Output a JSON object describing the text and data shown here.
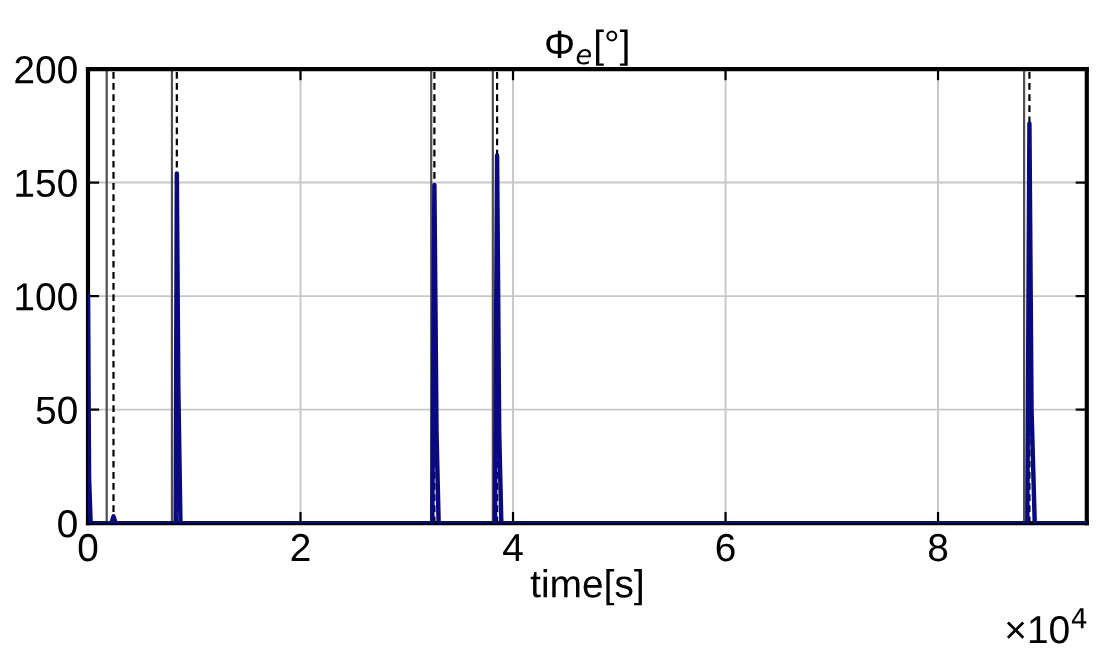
{
  "chart_data": {
    "type": "line",
    "title": "Φ$_{e}$[°]",
    "xlabel": "time[s]",
    "annotations": [
      "×10$^{4}$"
    ],
    "xlim": [
      0,
      9.4
    ],
    "xticks": [
      0,
      2,
      4,
      6,
      8
    ],
    "ylim": [
      0,
      200
    ],
    "yticks": [
      0,
      50,
      100,
      150,
      200
    ],
    "grid": true,
    "marker": "none",
    "line_style": "solid",
    "series": [
      {
        "color": "#0a0a80",
        "x": [
          0,
          0.01,
          0.025,
          0.22,
          0.24,
          0.26,
          0.825,
          0.836,
          0.85,
          0.87,
          3.24,
          3.26,
          3.28,
          3.3,
          3.83,
          3.85,
          3.87,
          3.89,
          8.84,
          8.86,
          8.88,
          8.91,
          9.4
        ],
        "values": [
          100,
          20,
          0,
          0,
          3,
          0,
          0,
          154,
          60,
          0,
          0,
          149,
          40,
          0,
          0,
          162,
          40,
          0,
          0,
          176,
          50,
          0,
          0
        ]
      }
    ],
    "ref_lines": [
      {
        "axis": "x",
        "value": 0.176,
        "color": "#505050",
        "line_style": "solid"
      },
      {
        "axis": "x",
        "value": 0.24,
        "color": "#000000",
        "line_style": "dashed"
      },
      {
        "axis": "x",
        "value": 0.79,
        "color": "#505050",
        "line_style": "solid"
      },
      {
        "axis": "x",
        "value": 0.836,
        "color": "#000000",
        "line_style": "dashed"
      },
      {
        "axis": "x",
        "value": 3.23,
        "color": "#505050",
        "line_style": "solid"
      },
      {
        "axis": "x",
        "value": 3.26,
        "color": "#000000",
        "line_style": "dashed"
      },
      {
        "axis": "x",
        "value": 3.81,
        "color": "#505050",
        "line_style": "solid"
      },
      {
        "axis": "x",
        "value": 3.85,
        "color": "#000000",
        "line_style": "dashed"
      },
      {
        "axis": "x",
        "value": 8.81,
        "color": "#505050",
        "line_style": "solid"
      },
      {
        "axis": "x",
        "value": 8.86,
        "color": "#000000",
        "line_style": "dashed"
      }
    ]
  }
}
